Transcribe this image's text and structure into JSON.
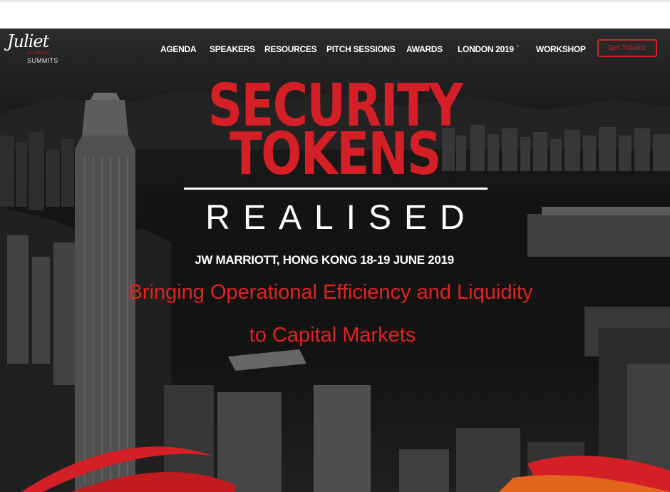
{
  "brand": {
    "logo_script": "Juliet",
    "logo_tagline": "EXCHANGE",
    "logo_sub": "SUMMITS"
  },
  "nav": {
    "items": [
      "AGENDA",
      "SPEAKERS",
      "RESOURCES",
      "PITCH SESSIONS",
      "AWARDS",
      "LONDON 2019",
      "WORKSHOP"
    ],
    "dropdown_icon": "chevron-down-icon",
    "cta": "Get Tickets!"
  },
  "hero": {
    "title_line1": "SECURITY",
    "title_line2": "TOKENS",
    "subtitle": "REALISED",
    "venue": "JW MARRIOTT, HONG KONG 18-19 JUNE 2019",
    "tagline_line1": "Bringing Operational Efficiency and Liquidity",
    "tagline_line2": "to Capital Markets"
  },
  "colors": {
    "accent": "#d41f26",
    "text": "#ffffff",
    "background": "#1c1c1c"
  }
}
